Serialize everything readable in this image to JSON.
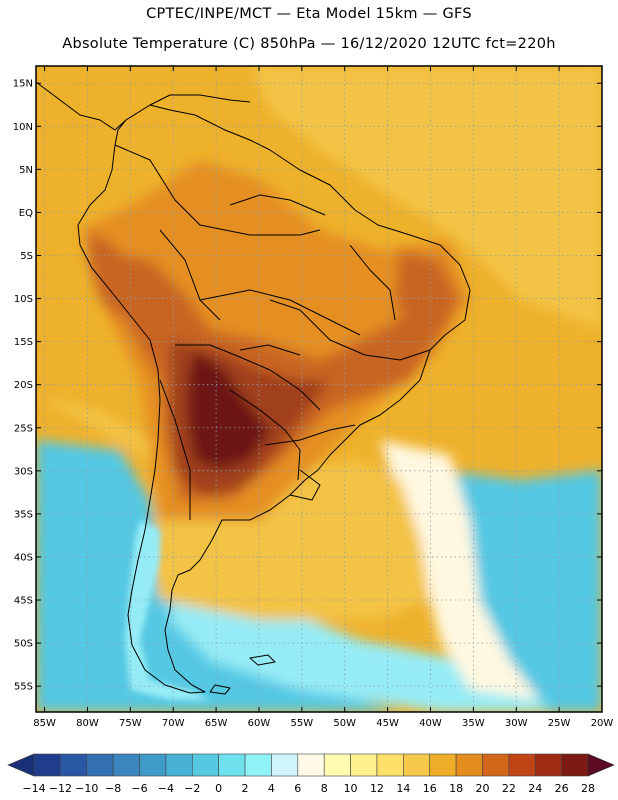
{
  "header": {
    "line1": "CPTEC/INPE/MCT —   Eta Model 15km — GFS",
    "line2": "Absolute Temperature (C) 850hPa — 16/12/2020 12UTC fct=220h"
  },
  "axes": {
    "lat_labels": [
      "15N",
      "10N",
      "5N",
      "EQ",
      "5S",
      "10S",
      "15S",
      "20S",
      "25S",
      "30S",
      "35S",
      "40S",
      "45S",
      "50S",
      "55S"
    ],
    "lon_labels": [
      "85W",
      "80W",
      "75W",
      "70W",
      "65W",
      "60W",
      "55W",
      "50W",
      "45W",
      "40W",
      "35W",
      "30W",
      "25W",
      "20W"
    ],
    "lat_range": [
      17,
      -58
    ],
    "lon_range": [
      -86,
      -20
    ]
  },
  "colorbar": {
    "labels": [
      "-14",
      "-12",
      "-10",
      "-8",
      "-6",
      "-4",
      "-2",
      "0",
      "2",
      "4",
      "6",
      "8",
      "10",
      "12",
      "14",
      "16",
      "18",
      "20",
      "22",
      "24",
      "26",
      "28"
    ],
    "low_color": "#1a2f7a",
    "high_color": "#5c0a22",
    "colors": [
      "#1f3d8c",
      "#2a57a3",
      "#3370b2",
      "#3b86bf",
      "#3f9ac8",
      "#48b2d6",
      "#56c9e2",
      "#6ee0ee",
      "#8ff2f7",
      "#cff5fa",
      "#fffae8",
      "#fffcb2",
      "#fff08e",
      "#fde06a",
      "#f6c94a",
      "#efae2a",
      "#e58c1f",
      "#d4661a",
      "#bf4516",
      "#9e2c12",
      "#7c1a13"
    ]
  },
  "map_colors": {
    "ocean_deep": "#3aa0cf",
    "ocean_cyan": "#55c8e3",
    "ocean_light": "#96ecf6",
    "pale": "#fff8e0",
    "lemon": "#fde88a",
    "light_orange": "#f3c345",
    "orange": "#eeb12b",
    "dark_orange": "#e58f22",
    "red_orange": "#c96522",
    "brown": "#a1401b",
    "maroon": "#6d1816",
    "border_line": "#000000"
  }
}
